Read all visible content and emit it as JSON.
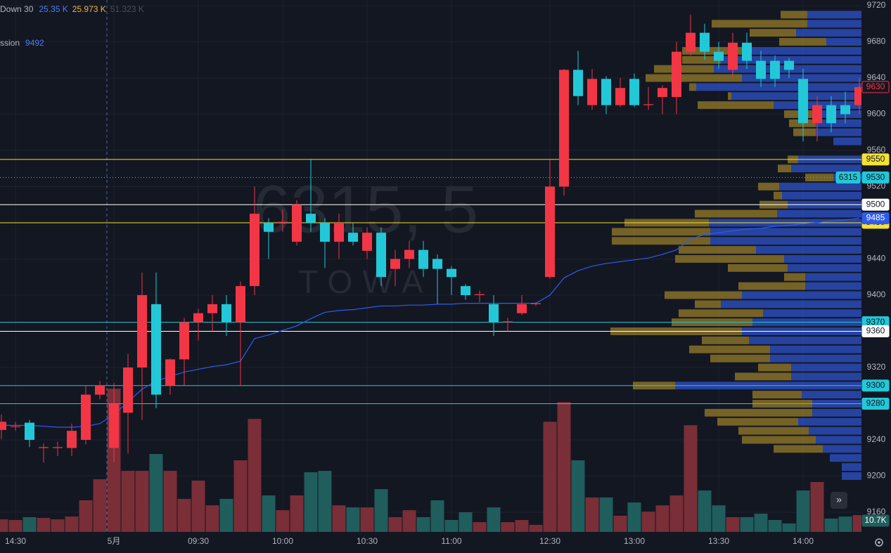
{
  "chart_data": {
    "type": "candlestick",
    "watermark": "6315, 5",
    "watermark_sub": "TOWA",
    "indicators": [
      {
        "name": "Down 30",
        "labels": [
          {
            "text": "25.35 K",
            "color": "#4d7cf5"
          },
          {
            "text": "25.973 K",
            "color": "#f0b43c"
          },
          {
            "text": "51.323 K",
            "color": "#4a4e5a"
          }
        ]
      },
      {
        "name": "ssion",
        "labels": [
          {
            "text": "9492",
            "color": "#4d7cf5"
          }
        ]
      }
    ],
    "categories": [
      null,
      "14:30",
      null,
      null,
      null,
      null,
      null,
      null,
      "5月",
      null,
      null,
      null,
      null,
      null,
      "09:30",
      null,
      null,
      null,
      null,
      null,
      "10:00",
      null,
      null,
      null,
      null,
      null,
      "10:30",
      null,
      null,
      null,
      null,
      null,
      "11:00",
      null,
      null,
      null,
      null,
      null,
      null,
      "12:30",
      null,
      null,
      null,
      null,
      null,
      "13:00",
      null,
      null,
      null,
      null,
      null,
      "13:30",
      null,
      null,
      null,
      null,
      null,
      "14:00",
      null,
      null,
      null,
      null
    ],
    "open": [
      9251,
      9255,
      9259,
      9231,
      9231,
      9231,
      9240,
      9290,
      9231,
      9270,
      9320,
      9390,
      9300,
      9329,
      9370,
      9380,
      9390,
      9370,
      9410,
      9480,
      9480,
      9459,
      9490,
      9480,
      9459,
      9469,
      9449,
      9469,
      9429,
      9440,
      9450,
      9440,
      9429,
      9410,
      9400,
      9390,
      9370,
      9380,
      9390,
      9420,
      9520,
      9649,
      9610,
      9639,
      9610,
      9639,
      9610,
      9619,
      9619,
      9669,
      9690,
      9669,
      9649,
      9679,
      9659,
      9659,
      9659,
      9639,
      9590,
      9610,
      9610,
      9610
    ],
    "high": [
      9268,
      9260,
      9262,
      9236,
      9238,
      9258,
      9300,
      9305,
      9303,
      9335,
      9425,
      9425,
      9330,
      9375,
      9385,
      9400,
      9400,
      9415,
      9520,
      9485,
      9495,
      9505,
      9550,
      9485,
      9490,
      9480,
      9475,
      9475,
      9450,
      9460,
      9460,
      9445,
      9432,
      9412,
      9405,
      9400,
      9375,
      9400,
      9392,
      9550,
      9650,
      9670,
      9650,
      9642,
      9640,
      9645,
      9630,
      9632,
      9680,
      9710,
      9700,
      9680,
      9690,
      9690,
      9670,
      9665,
      9662,
      9650,
      9620,
      9620,
      9625,
      9640
    ],
    "low": [
      9241,
      9250,
      9232,
      9215,
      9222,
      9222,
      9235,
      9285,
      9215,
      9225,
      9262,
      9275,
      9290,
      9300,
      9350,
      9360,
      9355,
      9300,
      9400,
      9440,
      9470,
      9455,
      9470,
      9430,
      9440,
      9455,
      9440,
      9410,
      9410,
      9430,
      9420,
      9390,
      9400,
      9395,
      9392,
      9355,
      9360,
      9378,
      9388,
      9418,
      9510,
      9610,
      9605,
      9600,
      9608,
      9608,
      9605,
      9600,
      9600,
      9665,
      9660,
      9650,
      9640,
      9650,
      9630,
      9630,
      9640,
      9570,
      9570,
      9580,
      9590,
      9600
    ],
    "close": [
      9260,
      9255,
      9240,
      9232,
      9232,
      9250,
      9290,
      9300,
      9280,
      9320,
      9400,
      9290,
      9329,
      9370,
      9380,
      9390,
      9370,
      9410,
      9490,
      9470,
      9481,
      9500,
      9480,
      9459,
      9480,
      9459,
      9469,
      9420,
      9440,
      9450,
      9429,
      9429,
      9420,
      9400,
      9401,
      9370,
      9371,
      9390,
      9391,
      9520,
      9649,
      9620,
      9639,
      9610,
      9629,
      9610,
      9611,
      9629,
      9669,
      9690,
      9669,
      9659,
      9679,
      9659,
      9639,
      9639,
      9649,
      9590,
      9610,
      9590,
      9600,
      9630
    ],
    "up_color": "#f23645",
    "down_color": "#22c8d8",
    "volume": {
      "values": [
        8.0,
        7.6,
        9.4,
        8.9,
        8.0,
        9.8,
        20.1,
        33.5,
        91.0,
        38.8,
        38.8,
        49.5,
        38.8,
        21.0,
        32.6,
        16.9,
        21.0,
        45.5,
        71.8,
        23.2,
        13.8,
        23.2,
        37.9,
        38.8,
        16.9,
        15.6,
        15.6,
        27.2,
        9.4,
        13.8,
        9.4,
        20.1,
        7.6,
        12.5,
        6.2,
        15.6,
        6.2,
        7.6,
        4.5,
        70.0,
        82.5,
        45.5,
        21.9,
        21.9,
        10.3,
        18.7,
        12.9,
        16.9,
        23.2,
        67.8,
        26.3,
        16.9,
        9.4,
        9.4,
        11.6,
        7.6,
        5.4,
        26.3,
        31.7,
        8.5,
        9.8,
        10.7
      ],
      "ylim": [
        0,
        100
      ],
      "last_label": "10.7K",
      "up_color": "#7a2e37",
      "down_color": "#1f5e5c"
    },
    "vwap": {
      "color": "#2f5cf0",
      "values": [
        9256,
        9256,
        9256,
        9255,
        9254,
        9254,
        9255,
        9258,
        9268,
        9282,
        9296,
        9305,
        9310,
        9315,
        9318,
        9321,
        9323,
        9327,
        9352,
        9356,
        9361,
        9366,
        9374,
        9381,
        9383,
        9384,
        9386,
        9388,
        9388,
        9389,
        9389,
        9390,
        9390,
        9391,
        9391,
        9391,
        9391,
        9391,
        9391,
        9400,
        9419,
        9427,
        9432,
        9435,
        9437,
        9439,
        9441,
        9445,
        9450,
        9462,
        9467,
        9469,
        9471,
        9473,
        9474,
        9476,
        9477,
        9479,
        9480,
        9482,
        9483,
        9485
      ]
    },
    "ylim": [
      9160,
      9720
    ],
    "yticks": [
      9160,
      9200,
      9240,
      9280,
      9320,
      9360,
      9400,
      9440,
      9480,
      9520,
      9560,
      9600,
      9640,
      9680,
      9720
    ],
    "grid": true,
    "levels": [
      {
        "value": 9550,
        "color": "#f5e134"
      },
      {
        "value": 9530,
        "color": "#22c8d8",
        "style": "dotted",
        "tag": "6315"
      },
      {
        "value": 9500,
        "color": "#ffffff"
      },
      {
        "value": 9480,
        "color": "#f5e134"
      },
      {
        "value": 9370,
        "color": "#22c8d8"
      },
      {
        "value": 9360,
        "color": "#ffffff"
      },
      {
        "value": 9300,
        "color": "#22c8d8"
      },
      {
        "value": 9280,
        "color": "#22c8d8"
      }
    ],
    "profile": {
      "prices": [
        9710,
        9700,
        9690,
        9680,
        9670,
        9660,
        9650,
        9640,
        9630,
        9620,
        9610,
        9600,
        9590,
        9580,
        9570,
        9560,
        9550,
        9540,
        9530,
        9520,
        9510,
        9500,
        9490,
        9480,
        9470,
        9460,
        9450,
        9440,
        9430,
        9420,
        9410,
        9400,
        9390,
        9380,
        9370,
        9360,
        9350,
        9340,
        9330,
        9320,
        9310,
        9300,
        9290,
        9280,
        9270,
        9260,
        9250,
        9240,
        9230,
        9220,
        9210,
        9200
      ],
      "up": [
        77,
        77,
        93,
        50,
        165,
        200,
        210,
        170,
        235,
        185,
        125,
        65,
        65,
        65,
        40,
        0,
        90,
        100,
        40,
        117,
        113,
        105,
        120,
        217,
        215,
        215,
        150,
        110,
        105,
        80,
        80,
        170,
        200,
        140,
        155,
        170,
        160,
        130,
        130,
        100,
        100,
        265,
        85,
        70,
        70,
        90,
        75,
        65,
        55,
        45,
        28,
        28
      ],
      "down": [
        38,
        136,
        66,
        67,
        90,
        55,
        85,
        137,
        10,
        5,
        108,
        45,
        38,
        32,
        0,
        0,
        15,
        19,
        40,
        30,
        12,
        40,
        117,
        120,
        140,
        140,
        110,
        155,
        85,
        30,
        95,
        110,
        37,
        120,
        115,
        187,
        67,
        115,
        85,
        47,
        80,
        60,
        70,
        85,
        153,
        115,
        100,
        105,
        70,
        0,
        0,
        0
      ],
      "xlim": [
        0,
        400
      ],
      "up_color": "#2c4fc0",
      "down_color": "#b8952a"
    }
  }
}
